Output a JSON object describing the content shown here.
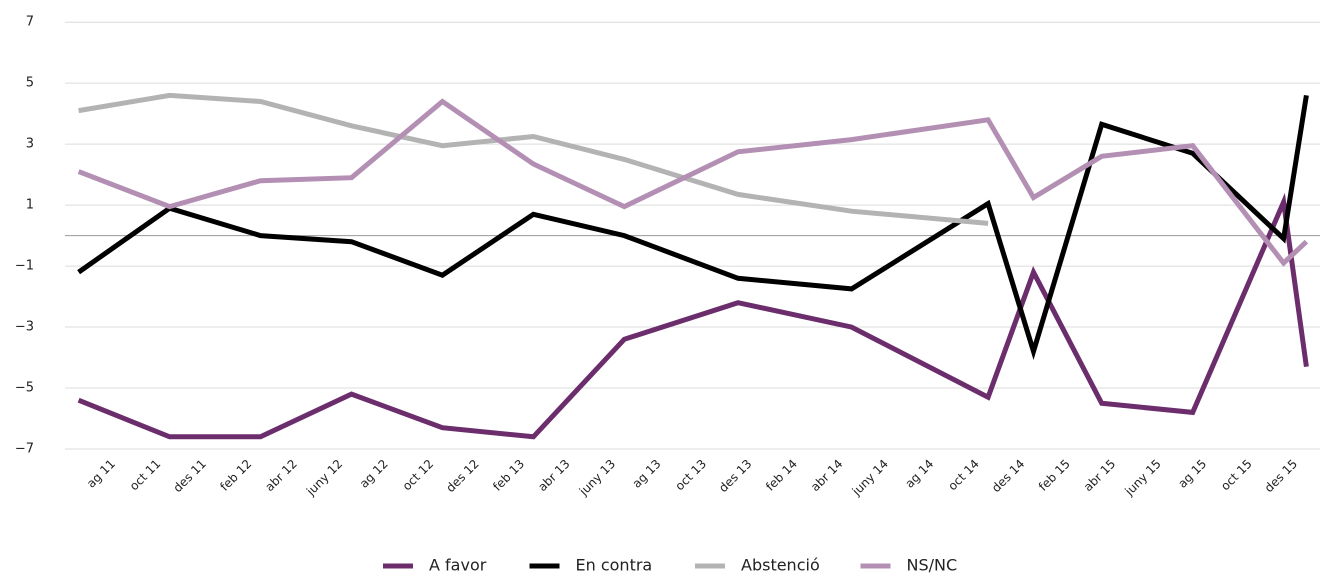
{
  "chart_data": {
    "type": "line",
    "categories": [
      "ag 11",
      "oct 11",
      "des 11",
      "feb 12",
      "abr 12",
      "juny 12",
      "ag 12",
      "oct 12",
      "des 12",
      "feb 13",
      "abr 13",
      "juny 13",
      "ag 13",
      "oct 13",
      "des 13",
      "feb 14",
      "abr 14",
      "juny 14",
      "ag 14",
      "oct 14",
      "des 14",
      "feb 15",
      "abr 15",
      "juny 15",
      "ag 15",
      "oct 15",
      "des 15"
    ],
    "xlim": [
      -0.8,
      26.8
    ],
    "ylim": [
      -7,
      7.4
    ],
    "yticks": [
      7,
      5,
      3,
      1,
      {
        "value": -1,
        "label": "−1"
      },
      {
        "value": -3,
        "label": "−3"
      },
      {
        "value": -5,
        "label": "−5"
      },
      {
        "value": -7,
        "label": "−7"
      }
    ],
    "grid": true,
    "legend": "bottom",
    "series": [
      {
        "name": "A favor",
        "color": "#6b2d6b",
        "x": [
          -0.5,
          1.5,
          3.5,
          5.5,
          7.5,
          9.5,
          11.5,
          14,
          16.5,
          19.5,
          20.5,
          22,
          24,
          26,
          26.5
        ],
        "values": [
          -5.4,
          -6.6,
          -6.6,
          -5.2,
          -6.3,
          -6.6,
          -3.4,
          -2.2,
          -3.0,
          -5.3,
          -1.2,
          -5.5,
          -5.8,
          1.1,
          -4.3
        ]
      },
      {
        "name": "En contra",
        "color": "#000000",
        "x": [
          -0.5,
          1.5,
          3.5,
          5.5,
          7.5,
          9.5,
          11.5,
          14,
          16.5,
          19.5,
          20.5,
          22,
          24,
          26,
          26.5
        ],
        "values": [
          -1.2,
          0.9,
          0,
          -0.2,
          -1.3,
          0.7,
          0,
          -1.4,
          -1.75,
          1.05,
          -3.8,
          3.65,
          2.7,
          -0.1,
          4.6
        ]
      },
      {
        "name": "Abstenció",
        "color": "#b3b3b3",
        "x": [
          -0.5,
          1.5,
          3.5,
          5.5,
          7.5,
          9.5,
          11.5,
          14,
          16.5,
          19.5
        ],
        "values": [
          4.1,
          4.6,
          4.4,
          3.6,
          2.95,
          3.25,
          2.5,
          1.35,
          0.8,
          0.4
        ]
      },
      {
        "name": "NS/NC",
        "color": "#b48fb4",
        "x": [
          -0.5,
          1.5,
          3.5,
          5.5,
          7.5,
          9.5,
          11.5,
          14,
          16.5,
          19.5,
          20.5,
          22,
          24,
          26,
          26.5
        ],
        "values": [
          2.1,
          0.95,
          1.8,
          1.9,
          4.4,
          2.35,
          0.95,
          2.75,
          3.15,
          3.8,
          1.25,
          2.6,
          2.95,
          -0.9,
          -0.2
        ]
      }
    ]
  }
}
